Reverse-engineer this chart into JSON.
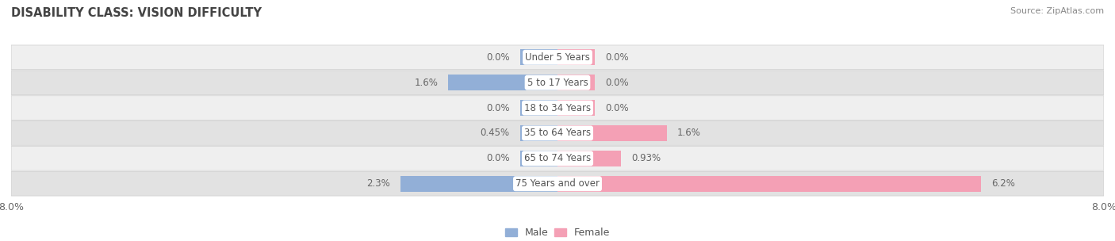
{
  "title": "DISABILITY CLASS: VISION DIFFICULTY",
  "source": "Source: ZipAtlas.com",
  "categories": [
    "Under 5 Years",
    "5 to 17 Years",
    "18 to 34 Years",
    "35 to 64 Years",
    "65 to 74 Years",
    "75 Years and over"
  ],
  "male_values": [
    0.0,
    1.6,
    0.0,
    0.45,
    0.0,
    2.3
  ],
  "female_values": [
    0.0,
    0.0,
    0.0,
    1.6,
    0.93,
    6.2
  ],
  "male_color": "#92afd7",
  "female_color": "#f4a0b5",
  "row_bg_colors": [
    "#efefef",
    "#e2e2e2"
  ],
  "row_border_color": "#cccccc",
  "xlim": 8.0,
  "bar_height": 0.62,
  "min_bar_width": 0.55,
  "title_fontsize": 10.5,
  "label_fontsize": 8.5,
  "tick_fontsize": 9,
  "source_fontsize": 8,
  "legend_fontsize": 9,
  "value_color": "#666666",
  "label_color": "#555555",
  "title_color": "#444444"
}
